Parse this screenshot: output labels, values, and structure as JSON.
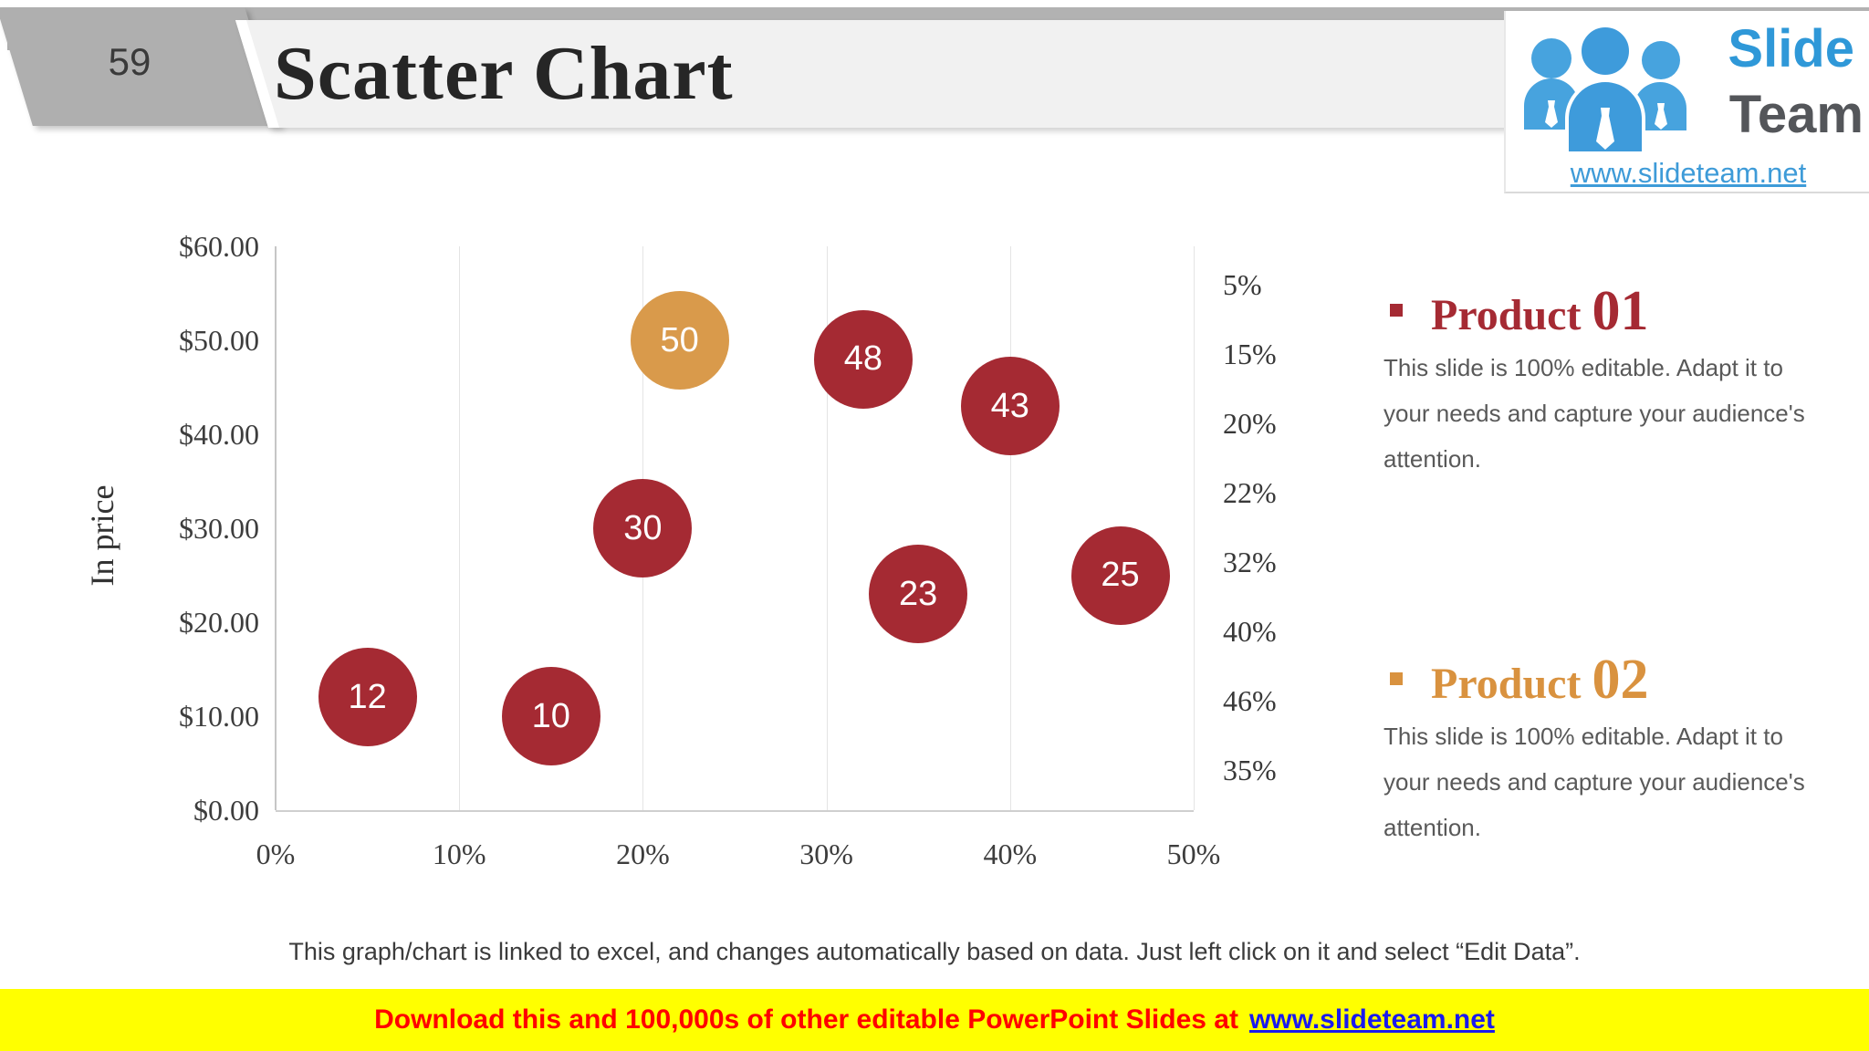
{
  "slide": {
    "number": "59",
    "title": "Scatter Chart",
    "footnote": "This graph/chart is linked to excel, and changes automatically based on data. Just left click on it and select “Edit Data”."
  },
  "logo": {
    "word1": "Slide",
    "word2": "Team",
    "url": "www.slideteam.net"
  },
  "banner": {
    "text": "Download this and 100,000s of other editable PowerPoint Slides at",
    "link": "www.slideteam.net",
    "background": "#ffff00",
    "text_color": "#ff0000",
    "link_color": "#1a1aee"
  },
  "chart_data": {
    "type": "scatter",
    "title": "",
    "xlabel": "",
    "ylabel": "In price",
    "xlim": [
      0,
      50
    ],
    "ylim": [
      0,
      60
    ],
    "x_ticks": [
      "0%",
      "10%",
      "20%",
      "30%",
      "40%",
      "50%"
    ],
    "y_ticks": [
      "$0.00",
      "$10.00",
      "$20.00",
      "$30.00",
      "$40.00",
      "$50.00",
      "$60.00"
    ],
    "grid": "vertical",
    "series": [
      {
        "name": "Product 01",
        "color": "#A52A33",
        "points": [
          {
            "x": 5,
            "y": 12,
            "label": "12"
          },
          {
            "x": 15,
            "y": 10,
            "label": "10"
          },
          {
            "x": 20,
            "y": 30,
            "label": "30"
          },
          {
            "x": 32,
            "y": 48,
            "label": "48"
          },
          {
            "x": 35,
            "y": 23,
            "label": "23"
          },
          {
            "x": 40,
            "y": 43,
            "label": "43"
          },
          {
            "x": 46,
            "y": 25,
            "label": "25"
          }
        ]
      },
      {
        "name": "Product 02",
        "color": "#D99A4B",
        "points": [
          {
            "x": 22,
            "y": 50,
            "label": "50"
          }
        ]
      }
    ]
  },
  "percent_list": {
    "items": [
      "5%",
      "15%",
      "20%",
      "22%",
      "32%",
      "40%",
      "46%",
      "35%"
    ]
  },
  "legend": [
    {
      "product": "Product ",
      "number": "01",
      "color": "#A52A33",
      "body": "This slide is 100% editable. Adapt it to your needs and capture your audience's attention."
    },
    {
      "product": "Product ",
      "number": "02",
      "color": "#D9923F",
      "body": "This slide is 100% editable. Adapt it to your needs and capture your audience's attention."
    }
  ]
}
